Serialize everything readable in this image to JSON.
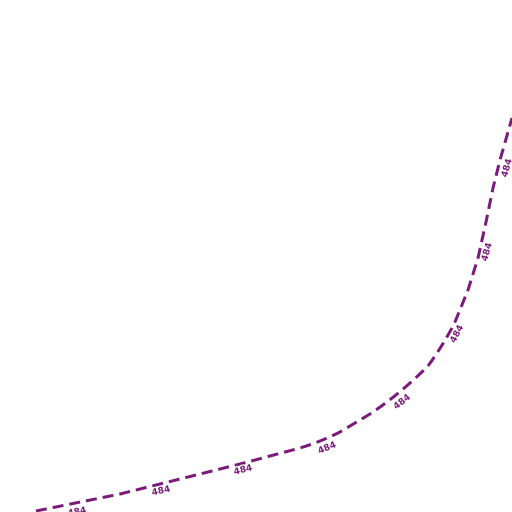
{
  "map": {
    "background_color": "#ffffff",
    "route": {
      "ref": "484",
      "color": "#7b1a7b",
      "line_style": "dashed"
    },
    "labels": [
      "484",
      "484",
      "484",
      "484",
      "484",
      "484",
      "484"
    ]
  }
}
